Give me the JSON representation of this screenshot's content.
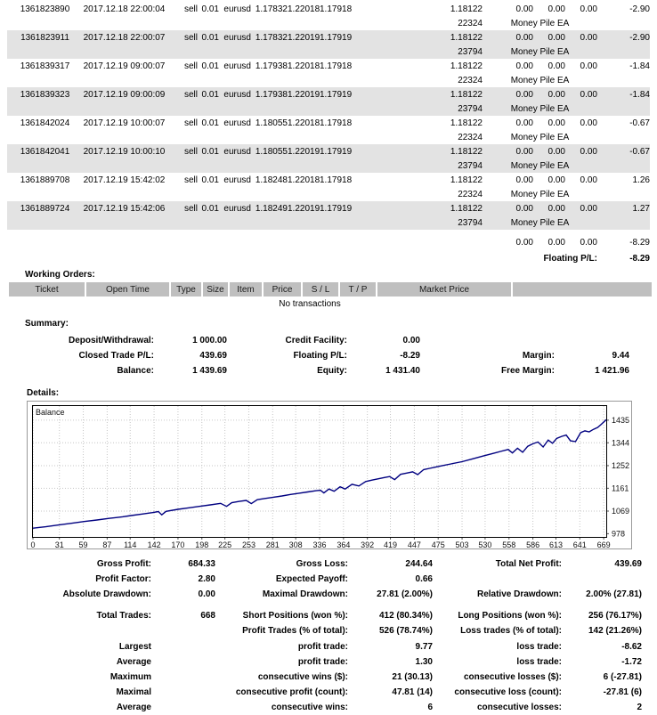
{
  "colors": {
    "shade": "#e3e3e3",
    "wo_header_bg": "#bfbfbf",
    "chart_line": "#000080",
    "grid": "#c6c6c6",
    "panel_border": "#9a9a9a"
  },
  "trades": {
    "rows": [
      {
        "ticket": "1361823890",
        "open_time": "2017.12.18 22:00:04",
        "type": "sell",
        "size": "0.01",
        "item": "eurusd",
        "price": "1.17832",
        "sl": "1.22018",
        "tp": "1.17918",
        "close_time": "",
        "close_price": "1.18122",
        "commission": "0.00",
        "taxes": "0.00",
        "swap": "0.00",
        "profit": "-2.90",
        "magic": "22324",
        "comment": "Money Pile EA",
        "shaded": false
      },
      {
        "ticket": "1361823911",
        "open_time": "2017.12.18 22:00:07",
        "type": "sell",
        "size": "0.01",
        "item": "eurusd",
        "price": "1.17832",
        "sl": "1.22019",
        "tp": "1.17919",
        "close_time": "",
        "close_price": "1.18122",
        "commission": "0.00",
        "taxes": "0.00",
        "swap": "0.00",
        "profit": "-2.90",
        "magic": "23794",
        "comment": "Money Pile EA",
        "shaded": true
      },
      {
        "ticket": "1361839317",
        "open_time": "2017.12.19 09:00:07",
        "type": "sell",
        "size": "0.01",
        "item": "eurusd",
        "price": "1.17938",
        "sl": "1.22018",
        "tp": "1.17918",
        "close_time": "",
        "close_price": "1.18122",
        "commission": "0.00",
        "taxes": "0.00",
        "swap": "0.00",
        "profit": "-1.84",
        "magic": "22324",
        "comment": "Money Pile EA",
        "shaded": false
      },
      {
        "ticket": "1361839323",
        "open_time": "2017.12.19 09:00:09",
        "type": "sell",
        "size": "0.01",
        "item": "eurusd",
        "price": "1.17938",
        "sl": "1.22019",
        "tp": "1.17919",
        "close_time": "",
        "close_price": "1.18122",
        "commission": "0.00",
        "taxes": "0.00",
        "swap": "0.00",
        "profit": "-1.84",
        "magic": "23794",
        "comment": "Money Pile EA",
        "shaded": true
      },
      {
        "ticket": "1361842024",
        "open_time": "2017.12.19 10:00:07",
        "type": "sell",
        "size": "0.01",
        "item": "eurusd",
        "price": "1.18055",
        "sl": "1.22018",
        "tp": "1.17918",
        "close_time": "",
        "close_price": "1.18122",
        "commission": "0.00",
        "taxes": "0.00",
        "swap": "0.00",
        "profit": "-0.67",
        "magic": "22324",
        "comment": "Money Pile EA",
        "shaded": false
      },
      {
        "ticket": "1361842041",
        "open_time": "2017.12.19 10:00:10",
        "type": "sell",
        "size": "0.01",
        "item": "eurusd",
        "price": "1.18055",
        "sl": "1.22019",
        "tp": "1.17919",
        "close_time": "",
        "close_price": "1.18122",
        "commission": "0.00",
        "taxes": "0.00",
        "swap": "0.00",
        "profit": "-0.67",
        "magic": "23794",
        "comment": "Money Pile EA",
        "shaded": true
      },
      {
        "ticket": "1361889708",
        "open_time": "2017.12.19 15:42:02",
        "type": "sell",
        "size": "0.01",
        "item": "eurusd",
        "price": "1.18248",
        "sl": "1.22018",
        "tp": "1.17918",
        "close_time": "",
        "close_price": "1.18122",
        "commission": "0.00",
        "taxes": "0.00",
        "swap": "0.00",
        "profit": "1.26",
        "magic": "22324",
        "comment": "Money Pile EA",
        "shaded": false
      },
      {
        "ticket": "1361889724",
        "open_time": "2017.12.19 15:42:06",
        "type": "sell",
        "size": "0.01",
        "item": "eurusd",
        "price": "1.18249",
        "sl": "1.22019",
        "tp": "1.17919",
        "close_time": "",
        "close_price": "1.18122",
        "commission": "0.00",
        "taxes": "0.00",
        "swap": "0.00",
        "profit": "1.27",
        "magic": "23794",
        "comment": "Money Pile EA",
        "shaded": true
      }
    ],
    "totals": {
      "commission": "0.00",
      "taxes": "0.00",
      "swap": "0.00",
      "profit": "-8.29"
    },
    "floating": {
      "label": "Floating P/L:",
      "value": "-8.29"
    }
  },
  "working_orders": {
    "title": "Working Orders:",
    "headers": [
      "Ticket",
      "Open Time",
      "Type",
      "Size",
      "Item",
      "Price",
      "S / L",
      "T / P",
      "Market Price",
      ""
    ],
    "empty": "No transactions"
  },
  "summary": {
    "title": "Summary:",
    "rows": [
      [
        "Deposit/Withdrawal:",
        "1 000.00",
        "Credit Facility:",
        "0.00",
        "",
        ""
      ],
      [
        "Closed Trade P/L:",
        "439.69",
        "Floating P/L:",
        "-8.29",
        "Margin:",
        "9.44"
      ],
      [
        "Balance:",
        "1 439.69",
        "Equity:",
        "1 431.40",
        "Free Margin:",
        "1 421.96"
      ]
    ]
  },
  "details": {
    "title": "Details:"
  },
  "chart_data": {
    "type": "line",
    "title": "Balance",
    "legend_label": "Balance",
    "x_ticks": [
      0,
      31,
      59,
      87,
      114,
      142,
      170,
      198,
      225,
      253,
      281,
      308,
      336,
      364,
      392,
      419,
      447,
      475,
      503,
      530,
      558,
      586,
      613,
      641,
      669
    ],
    "y_ticks": [
      978,
      1069,
      1161,
      1252,
      1344,
      1435
    ],
    "xlim": [
      0,
      672
    ],
    "ylim": [
      965,
      1492
    ],
    "grid": "dotted",
    "series": [
      {
        "name": "Balance",
        "color": "#000080",
        "points": [
          [
            0,
            1000
          ],
          [
            15,
            1006
          ],
          [
            30,
            1013
          ],
          [
            45,
            1020
          ],
          [
            60,
            1027
          ],
          [
            75,
            1033
          ],
          [
            90,
            1040
          ],
          [
            105,
            1046
          ],
          [
            115,
            1051
          ],
          [
            128,
            1057
          ],
          [
            140,
            1063
          ],
          [
            147,
            1067
          ],
          [
            151,
            1054
          ],
          [
            156,
            1068
          ],
          [
            170,
            1076
          ],
          [
            182,
            1082
          ],
          [
            195,
            1088
          ],
          [
            208,
            1094
          ],
          [
            220,
            1100
          ],
          [
            227,
            1088
          ],
          [
            233,
            1103
          ],
          [
            242,
            1108
          ],
          [
            250,
            1112
          ],
          [
            256,
            1099
          ],
          [
            263,
            1115
          ],
          [
            272,
            1120
          ],
          [
            281,
            1124
          ],
          [
            292,
            1130
          ],
          [
            302,
            1136
          ],
          [
            312,
            1141
          ],
          [
            322,
            1146
          ],
          [
            332,
            1151
          ],
          [
            337,
            1153
          ],
          [
            341,
            1142
          ],
          [
            347,
            1158
          ],
          [
            353,
            1149
          ],
          [
            360,
            1167
          ],
          [
            366,
            1158
          ],
          [
            374,
            1177
          ],
          [
            382,
            1170
          ],
          [
            390,
            1188
          ],
          [
            398,
            1194
          ],
          [
            405,
            1199
          ],
          [
            412,
            1204
          ],
          [
            418,
            1208
          ],
          [
            424,
            1196
          ],
          [
            431,
            1217
          ],
          [
            438,
            1222
          ],
          [
            445,
            1227
          ],
          [
            451,
            1216
          ],
          [
            458,
            1236
          ],
          [
            465,
            1241
          ],
          [
            472,
            1246
          ],
          [
            480,
            1252
          ],
          [
            490,
            1259
          ],
          [
            503,
            1268
          ],
          [
            515,
            1279
          ],
          [
            527,
            1290
          ],
          [
            538,
            1300
          ],
          [
            548,
            1309
          ],
          [
            557,
            1317
          ],
          [
            562,
            1303
          ],
          [
            568,
            1322
          ],
          [
            574,
            1306
          ],
          [
            580,
            1330
          ],
          [
            586,
            1340
          ],
          [
            592,
            1347
          ],
          [
            598,
            1327
          ],
          [
            604,
            1355
          ],
          [
            609,
            1342
          ],
          [
            614,
            1362
          ],
          [
            620,
            1370
          ],
          [
            625,
            1375
          ],
          [
            630,
            1352
          ],
          [
            636,
            1349
          ],
          [
            642,
            1385
          ],
          [
            647,
            1392
          ],
          [
            652,
            1388
          ],
          [
            657,
            1398
          ],
          [
            662,
            1406
          ],
          [
            666,
            1418
          ],
          [
            672,
            1437
          ]
        ]
      }
    ]
  },
  "stats": {
    "rows": [
      [
        "Gross Profit:",
        "684.33",
        "Gross Loss:",
        "244.64",
        "Total Net Profit:",
        "439.69"
      ],
      [
        "Profit Factor:",
        "2.80",
        "Expected Payoff:",
        "0.66",
        "",
        ""
      ],
      [
        "Absolute Drawdown:",
        "0.00",
        "Maximal Drawdown:",
        "27.81 (2.00%)",
        "Relative Drawdown:",
        "2.00% (27.81)"
      ],
      [
        "Total Trades:",
        "668",
        "Short Positions (won %):",
        "412 (80.34%)",
        "Long Positions (won %):",
        "256 (76.17%)"
      ],
      [
        "",
        "",
        "Profit Trades (% of total):",
        "526 (78.74%)",
        "Loss trades (% of total):",
        "142 (21.26%)"
      ],
      [
        "Largest",
        "",
        "profit trade:",
        "9.77",
        "loss trade:",
        "-8.62"
      ],
      [
        "Average",
        "",
        "profit trade:",
        "1.30",
        "loss trade:",
        "-1.72"
      ],
      [
        "Maximum",
        "",
        "consecutive wins ($):",
        "21 (30.13)",
        "consecutive losses ($):",
        "6 (-27.81)"
      ],
      [
        "Maximal",
        "",
        "consecutive profit (count):",
        "47.81 (14)",
        "consecutive loss (count):",
        "-27.81 (6)"
      ],
      [
        "Average",
        "",
        "consecutive wins:",
        "6",
        "consecutive losses:",
        "2"
      ]
    ]
  }
}
